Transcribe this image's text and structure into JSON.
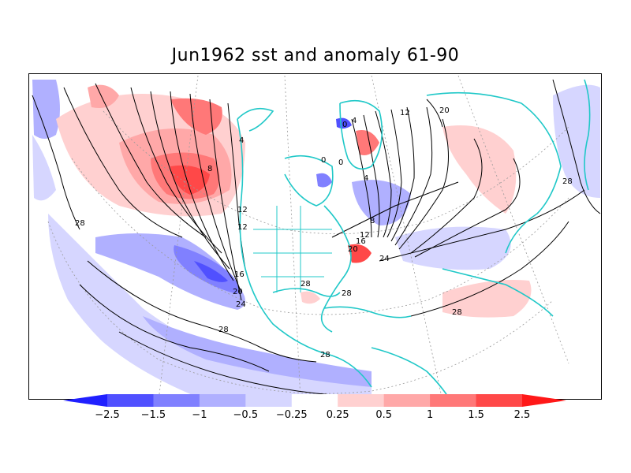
{
  "title": "Jun1962 sst and anomaly 61-90",
  "colors": {
    "coast": "#20c8c8",
    "contour": "#000000",
    "grid": "#9a9a9a",
    "anomaly_scale": [
      "#2020ff",
      "#5050ff",
      "#8080ff",
      "#b0b0ff",
      "#d6d6ff",
      "#ffffff",
      "#ffd0d0",
      "#ffa8a8",
      "#ff7878",
      "#ff4848",
      "#ff1818"
    ]
  },
  "colorbar": {
    "ticks": [
      "−2.5",
      "−1.5",
      "−1",
      "−0.5",
      "−0.25",
      "0.25",
      "0.5",
      "1",
      "1.5",
      "2.5"
    ]
  },
  "contour_labels": [
    "28",
    "8",
    "12",
    "12",
    "16",
    "20",
    "24",
    "28",
    "28",
    "28",
    "28",
    "4",
    "0",
    "0",
    "4",
    "12",
    "20",
    "16",
    "24",
    "28",
    "20",
    "12",
    "8",
    "4",
    "0",
    "28"
  ]
}
